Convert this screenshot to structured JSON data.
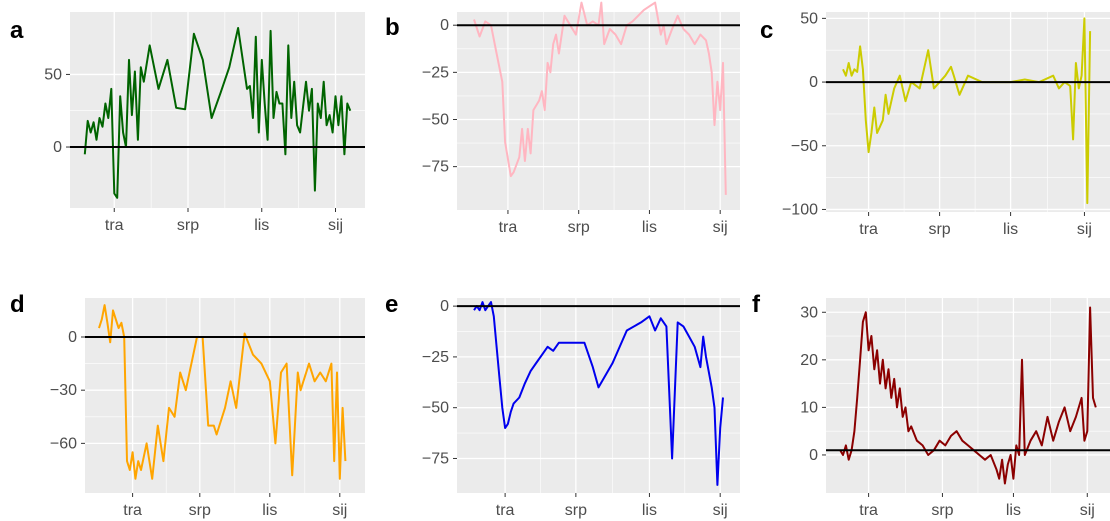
{
  "chart_data": [
    {
      "type": "line",
      "panel_label": "a",
      "color": "#006400",
      "xlim": [
        0,
        100
      ],
      "ylim": [
        -42,
        93
      ],
      "x_ticks": [
        {
          "value": 15,
          "label": "tra"
        },
        {
          "value": 40,
          "label": "srp"
        },
        {
          "value": 65,
          "label": "lis"
        },
        {
          "value": 90,
          "label": "sij"
        }
      ],
      "y_ticks": [
        {
          "value": 0,
          "label": "0"
        },
        {
          "value": 50,
          "label": "50"
        }
      ],
      "hline": 0,
      "x": [
        5,
        6,
        7,
        8,
        9,
        10,
        11,
        12,
        13,
        14,
        15,
        16,
        17,
        18,
        19,
        20,
        21,
        22,
        23,
        24,
        25,
        27,
        30,
        33,
        36,
        39,
        42,
        45,
        48,
        51,
        54,
        57,
        60,
        61,
        62,
        63,
        64,
        65,
        66,
        67,
        68,
        69,
        70,
        71,
        72,
        73,
        74,
        75,
        76,
        77,
        78,
        79,
        80,
        81,
        82,
        83,
        84,
        85,
        86,
        87,
        88,
        89,
        90,
        91,
        92,
        93,
        94,
        95
      ],
      "y": [
        -5,
        18,
        10,
        17,
        5,
        20,
        14,
        30,
        20,
        40,
        -32,
        -35,
        35,
        10,
        0,
        60,
        22,
        52,
        5,
        55,
        45,
        70,
        40,
        60,
        27,
        26,
        78,
        60,
        20,
        37,
        55,
        82,
        40,
        42,
        20,
        76,
        10,
        60,
        30,
        5,
        80,
        20,
        38,
        30,
        30,
        -5,
        70,
        20,
        45,
        15,
        10,
        28,
        45,
        25,
        40,
        -30,
        30,
        20,
        45,
        15,
        22,
        10,
        35,
        15,
        35,
        -5,
        30,
        25
      ]
    },
    {
      "type": "line",
      "panel_label": "b",
      "color": "#ffb6c1",
      "xlim": [
        0,
        100
      ],
      "ylim": [
        -98,
        7
      ],
      "x_ticks": [
        {
          "value": 18,
          "label": "tra"
        },
        {
          "value": 43,
          "label": "srp"
        },
        {
          "value": 68,
          "label": "lis"
        },
        {
          "value": 93,
          "label": "sij"
        }
      ],
      "y_ticks": [
        {
          "value": 0,
          "label": "0"
        },
        {
          "value": -25,
          "label": "-25"
        },
        {
          "value": -50,
          "label": "-50"
        },
        {
          "value": -75,
          "label": "-75"
        }
      ],
      "hline": 0,
      "x": [
        6,
        8,
        10,
        12,
        14,
        16,
        17,
        19,
        20,
        22,
        23,
        24,
        25,
        26,
        27,
        29,
        30,
        31,
        32,
        33,
        34,
        35,
        36,
        38,
        40,
        42,
        44,
        46,
        48,
        50,
        51,
        52,
        54,
        56,
        58,
        60,
        62,
        64,
        66,
        68,
        70,
        72,
        73,
        74,
        76,
        78,
        80,
        82,
        84,
        86,
        88,
        89,
        90,
        91,
        92,
        93,
        94,
        95
      ],
      "y": [
        3,
        -6,
        2,
        0,
        -15,
        -30,
        -62,
        -80,
        -78,
        -70,
        -55,
        -72,
        -55,
        -68,
        -45,
        -40,
        -35,
        -45,
        -20,
        -25,
        -10,
        -5,
        -15,
        5,
        0,
        -5,
        12,
        0,
        2,
        0,
        12,
        -10,
        -2,
        -5,
        -10,
        0,
        2,
        5,
        8,
        10,
        12,
        -5,
        0,
        -10,
        -2,
        5,
        -2,
        -5,
        -10,
        -5,
        -8,
        -15,
        -25,
        -53,
        -30,
        -45,
        -20,
        -90
      ]
    },
    {
      "type": "line",
      "panel_label": "c",
      "color": "#cccc00",
      "xlim": [
        0,
        100
      ],
      "ylim": [
        -102,
        55
      ],
      "x_ticks": [
        {
          "value": 15,
          "label": "tra"
        },
        {
          "value": 40,
          "label": "srp"
        },
        {
          "value": 65,
          "label": "lis"
        },
        {
          "value": 91,
          "label": "sij"
        }
      ],
      "y_ticks": [
        {
          "value": 50,
          "label": "50"
        },
        {
          "value": 0,
          "label": "0"
        },
        {
          "value": -50,
          "label": "-50"
        },
        {
          "value": -100,
          "label": "-100"
        }
      ],
      "hline": 0,
      "x": [
        6,
        7,
        8,
        9,
        10,
        11,
        12,
        13,
        14,
        15,
        16,
        17,
        18,
        19,
        20,
        21,
        22,
        24,
        26,
        28,
        30,
        33,
        36,
        38,
        40,
        42,
        44,
        45,
        47,
        50,
        55,
        60,
        65,
        70,
        75,
        80,
        82,
        84,
        86,
        87,
        88,
        89,
        90,
        91,
        92,
        93
      ],
      "y": [
        10,
        5,
        15,
        5,
        10,
        8,
        28,
        10,
        -30,
        -55,
        -40,
        -20,
        -40,
        -35,
        -30,
        -10,
        -25,
        -5,
        5,
        -15,
        0,
        -5,
        25,
        -5,
        0,
        5,
        12,
        5,
        -10,
        5,
        0,
        0,
        0,
        2,
        0,
        5,
        -5,
        0,
        -3,
        -45,
        15,
        -5,
        5,
        50,
        -95,
        40
      ]
    },
    {
      "type": "line",
      "panel_label": "d",
      "color": "#ffa500",
      "xlim": [
        0,
        100
      ],
      "ylim": [
        -88,
        22
      ],
      "x_ticks": [
        {
          "value": 17,
          "label": "tra"
        },
        {
          "value": 41,
          "label": "srp"
        },
        {
          "value": 66,
          "label": "lis"
        },
        {
          "value": 91,
          "label": "sij"
        }
      ],
      "y_ticks": [
        {
          "value": 0,
          "label": "0"
        },
        {
          "value": -30,
          "label": "-30"
        },
        {
          "value": -60,
          "label": "-60"
        }
      ],
      "hline": 0,
      "x": [
        5,
        6,
        7,
        8,
        9,
        10,
        11,
        12,
        13,
        14,
        15,
        16,
        17,
        18,
        19,
        20,
        22,
        24,
        26,
        28,
        30,
        32,
        34,
        36,
        38,
        40,
        42,
        44,
        46,
        47,
        50,
        52,
        54,
        57,
        60,
        63,
        66,
        68,
        70,
        72,
        74,
        76,
        77,
        78,
        79,
        80,
        82,
        84,
        86,
        88,
        89,
        90,
        91,
        92,
        93
      ],
      "y": [
        5,
        10,
        18,
        8,
        -3,
        15,
        10,
        5,
        8,
        0,
        -70,
        -75,
        -65,
        -80,
        -70,
        -75,
        -60,
        -80,
        -50,
        -70,
        -40,
        -45,
        -20,
        -30,
        -15,
        0,
        0,
        -50,
        -50,
        -55,
        -40,
        -25,
        -40,
        2,
        -10,
        -15,
        -25,
        -60,
        -20,
        -15,
        -78,
        -20,
        -30,
        -25,
        -20,
        -15,
        -25,
        -20,
        -25,
        -15,
        -70,
        -20,
        -80,
        -40,
        -70
      ]
    },
    {
      "type": "line",
      "panel_label": "e",
      "color": "#0000ee",
      "xlim": [
        0,
        100
      ],
      "ylim": [
        -92,
        4
      ],
      "x_ticks": [
        {
          "value": 17,
          "label": "tra"
        },
        {
          "value": 42,
          "label": "srp"
        },
        {
          "value": 68,
          "label": "lis"
        },
        {
          "value": 93,
          "label": "sij"
        }
      ],
      "y_ticks": [
        {
          "value": 0,
          "label": "0"
        },
        {
          "value": -25,
          "label": "-25"
        },
        {
          "value": -50,
          "label": "-50"
        },
        {
          "value": -75,
          "label": "-75"
        }
      ],
      "hline": 0,
      "x": [
        6,
        7,
        8,
        9,
        10,
        11,
        12,
        13,
        14,
        15,
        16,
        17,
        18,
        19,
        20,
        22,
        24,
        26,
        28,
        30,
        32,
        34,
        36,
        38,
        42,
        45,
        48,
        50,
        55,
        60,
        65,
        68,
        70,
        72,
        74,
        76,
        78,
        80,
        82,
        84,
        86,
        87,
        88,
        90,
        91,
        92,
        93,
        94
      ],
      "y": [
        -2,
        0,
        -2,
        2,
        -2,
        0,
        2,
        -5,
        -20,
        -35,
        -50,
        -60,
        -58,
        -52,
        -48,
        -45,
        -38,
        -32,
        -28,
        -24,
        -20,
        -22,
        -18,
        -18,
        -18,
        -18,
        -30,
        -40,
        -28,
        -12,
        -8,
        -5,
        -12,
        -6,
        -10,
        -75,
        -8,
        -10,
        -15,
        -20,
        -30,
        -15,
        -25,
        -40,
        -50,
        -88,
        -60,
        -45
      ]
    },
    {
      "type": "line",
      "panel_label": "f",
      "color": "#8b0000",
      "xlim": [
        0,
        100
      ],
      "ylim": [
        -8,
        33
      ],
      "x_ticks": [
        {
          "value": 15,
          "label": "tra"
        },
        {
          "value": 41,
          "label": "srp"
        },
        {
          "value": 66,
          "label": "lis"
        },
        {
          "value": 92,
          "label": "sij"
        }
      ],
      "y_ticks": [
        {
          "value": 0,
          "label": "0"
        },
        {
          "value": 10,
          "label": "10"
        },
        {
          "value": 20,
          "label": "20"
        },
        {
          "value": 30,
          "label": "30"
        }
      ],
      "hline": 1,
      "x": [
        5,
        6,
        7,
        8,
        9,
        10,
        11,
        12,
        13,
        14,
        15,
        16,
        17,
        18,
        19,
        20,
        21,
        22,
        23,
        24,
        25,
        26,
        27,
        28,
        29,
        30,
        32,
        34,
        36,
        38,
        40,
        42,
        44,
        46,
        48,
        50,
        52,
        54,
        56,
        58,
        60,
        61,
        62,
        63,
        64,
        65,
        66,
        67,
        68,
        69,
        70,
        72,
        74,
        76,
        78,
        80,
        82,
        84,
        86,
        88,
        90,
        91,
        92,
        93,
        94,
        95
      ],
      "y": [
        1,
        0,
        2,
        -1,
        1,
        5,
        12,
        20,
        28,
        30,
        22,
        25,
        18,
        22,
        15,
        20,
        14,
        18,
        12,
        16,
        10,
        14,
        8,
        10,
        5,
        6,
        3,
        2,
        0,
        1,
        3,
        2,
        4,
        5,
        3,
        2,
        1,
        0,
        -1,
        0,
        -3,
        -5,
        -1,
        -6,
        -2,
        0,
        -5,
        2,
        0,
        20,
        0,
        3,
        5,
        2,
        8,
        3,
        7,
        10,
        5,
        8,
        12,
        3,
        5,
        31,
        12,
        10
      ]
    }
  ]
}
